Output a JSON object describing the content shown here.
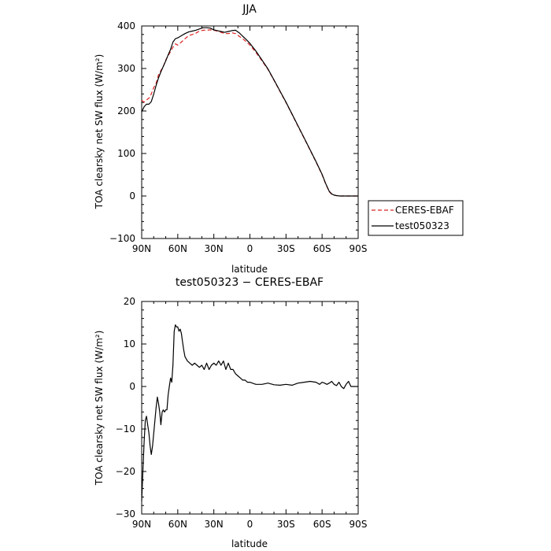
{
  "chart_data": [
    {
      "type": "line",
      "title": "JJA",
      "xlabel": "latitude",
      "ylabel": "TOA clearsky net SW flux (W/m²)",
      "xlim": [
        90,
        -90
      ],
      "ylim": [
        -100,
        400
      ],
      "xticks": [
        90,
        60,
        30,
        0,
        -30,
        -60,
        -90
      ],
      "xtick_labels": [
        "90N",
        "60N",
        "30N",
        "0",
        "30S",
        "60S",
        "90S"
      ],
      "yticks": [
        -100,
        0,
        100,
        200,
        300,
        400
      ],
      "ytick_labels": [
        "−100",
        "0",
        "100",
        "200",
        "300",
        "400"
      ],
      "legend_position": "right-bottom-outside",
      "series": [
        {
          "name": "CERES-EBAF",
          "color": "#dd2222",
          "dash": "dashed",
          "x": [
            90,
            88,
            86,
            84,
            82,
            80,
            78,
            76,
            74,
            72,
            70,
            68,
            66,
            64,
            62,
            60,
            57,
            54,
            51,
            48,
            45,
            42,
            39,
            36,
            33,
            30,
            27,
            24,
            21,
            18,
            15,
            12,
            9,
            6,
            3,
            0,
            -5,
            -10,
            -15,
            -20,
            -25,
            -30,
            -35,
            -40,
            -45,
            -50,
            -55,
            -60,
            -63,
            -66,
            -68,
            -70,
            -72,
            -75,
            -80,
            -85,
            -90
          ],
          "y": [
            225,
            221,
            226,
            230,
            240,
            255,
            265,
            285,
            295,
            305,
            320,
            330,
            340,
            350,
            358,
            355,
            362,
            370,
            377,
            380,
            383,
            388,
            390,
            390,
            391,
            390,
            388,
            385,
            382,
            382,
            384,
            382,
            376,
            370,
            363,
            355,
            338,
            318,
            298,
            272,
            246,
            220,
            192,
            164,
            136,
            108,
            80,
            50,
            28,
            10,
            4,
            2,
            1,
            0,
            0,
            0,
            0
          ]
        },
        {
          "name": "test050323",
          "color": "#000000",
          "dash": "solid",
          "x": [
            90,
            88,
            86,
            84,
            82,
            80,
            78,
            76,
            74,
            72,
            70,
            68,
            66,
            64,
            62,
            60,
            57,
            54,
            51,
            48,
            45,
            42,
            39,
            36,
            33,
            30,
            27,
            24,
            21,
            18,
            15,
            12,
            9,
            6,
            3,
            0,
            -5,
            -10,
            -15,
            -20,
            -25,
            -30,
            -35,
            -40,
            -45,
            -50,
            -55,
            -60,
            -63,
            -66,
            -68,
            -70,
            -72,
            -75,
            -80,
            -85,
            -90
          ],
          "y": [
            198,
            210,
            216,
            216,
            222,
            240,
            260,
            278,
            292,
            305,
            318,
            332,
            345,
            362,
            370,
            372,
            377,
            382,
            386,
            388,
            390,
            393,
            396,
            396,
            395,
            391,
            389,
            387,
            385,
            387,
            389,
            390,
            384,
            376,
            368,
            359,
            341,
            320,
            299,
            273,
            247,
            221,
            193,
            165,
            137,
            109,
            81,
            51,
            29,
            11,
            5,
            2,
            1,
            0,
            0,
            0,
            0
          ]
        }
      ]
    },
    {
      "type": "line",
      "title": "test050323 − CERES-EBAF",
      "xlabel": "latitude",
      "ylabel": "TOA clearsky net SW flux (W/m²)",
      "xlim": [
        90,
        -90
      ],
      "ylim": [
        -30,
        20
      ],
      "xticks": [
        90,
        60,
        30,
        0,
        -30,
        -60,
        -90
      ],
      "xtick_labels": [
        "90N",
        "60N",
        "30N",
        "0",
        "30S",
        "60S",
        "90S"
      ],
      "yticks": [
        -30,
        -20,
        -10,
        0,
        10,
        20
      ],
      "ytick_labels": [
        "−30",
        "−20",
        "−10",
        "0",
        "10",
        "20"
      ],
      "series": [
        {
          "color": "#000000",
          "dash": "solid",
          "x": [
            90,
            89,
            88,
            87,
            86,
            85,
            84,
            83,
            82,
            81,
            80,
            79,
            78,
            77,
            76,
            75,
            74,
            73,
            72,
            71,
            70,
            69,
            68,
            67,
            66,
            65,
            64,
            63,
            62,
            61,
            60,
            59,
            58,
            57,
            56,
            55,
            54,
            52,
            50,
            48,
            46,
            44,
            42,
            40,
            38,
            36,
            34,
            32,
            30,
            28,
            26,
            24,
            22,
            20,
            18,
            16,
            14,
            12,
            10,
            8,
            6,
            4,
            2,
            0,
            -5,
            -10,
            -15,
            -20,
            -25,
            -30,
            -35,
            -40,
            -45,
            -50,
            -55,
            -58,
            -60,
            -62,
            -64,
            -66,
            -68,
            -70,
            -72,
            -74,
            -76,
            -78,
            -80,
            -82,
            -84,
            -86,
            -88,
            -90
          ],
          "y": [
            -27,
            -20,
            -13,
            -8,
            -7,
            -9,
            -11,
            -14,
            -16,
            -14,
            -11,
            -8,
            -5,
            -2.5,
            -4,
            -6,
            -9,
            -6,
            -5.5,
            -6,
            -5.5,
            -5.5,
            -2,
            0,
            2,
            1,
            5,
            13,
            14.5,
            14,
            14,
            13,
            13.5,
            12.5,
            10.5,
            8.5,
            7,
            6,
            5.5,
            5,
            5.5,
            5,
            4.5,
            5,
            4,
            5.5,
            4,
            5,
            5.5,
            5,
            6,
            5,
            6,
            4,
            5.5,
            4,
            4,
            3,
            2.5,
            2,
            1.5,
            1.5,
            1,
            1,
            0.5,
            0.5,
            0.8,
            0.4,
            0.3,
            0.5,
            0.3,
            0.8,
            1,
            1.2,
            1,
            0.5,
            1,
            0.8,
            0.5,
            0.8,
            1.2,
            0.5,
            0.2,
            1,
            0,
            -0.5,
            0.5,
            1.2,
            0,
            0,
            0,
            0
          ]
        }
      ]
    }
  ]
}
